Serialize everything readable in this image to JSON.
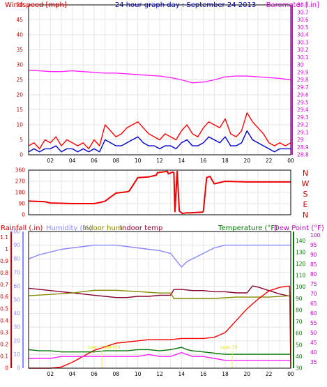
{
  "chart_data": [
    {
      "type": "line",
      "title": "24 hour graph day : September 24 2013",
      "left_axis": {
        "label": "Windspeed [mph]",
        "ticks": [
          "0",
          "5",
          "10",
          "15",
          "20",
          "25",
          "30",
          "35",
          "40",
          "45",
          "50"
        ],
        "range": [
          0,
          50
        ]
      },
      "right_axis": {
        "label": "Barometer [.in]",
        "ticks": [
          "28.8",
          "28.9",
          "29",
          "29.1",
          "29.2",
          "29.3",
          "29.4",
          "29.5",
          "29.6",
          "29.7",
          "29.8",
          "29.9",
          "30",
          "30.1",
          "30.2",
          "30.3",
          "30.4",
          "30.5",
          "30.6",
          "30.7",
          "30.8"
        ],
        "range": [
          28.8,
          30.8
        ]
      },
      "x_ticks": [
        "02",
        "04",
        "06",
        "08",
        "10",
        "12",
        "14",
        "16",
        "18",
        "20",
        "22",
        "00"
      ],
      "x_range": [
        1,
        25
      ],
      "grid": true,
      "series": [
        {
          "axis": "right",
          "color": "#ff22ff",
          "x": [
            1,
            2,
            3,
            4,
            5,
            6,
            7,
            8,
            9,
            10,
            11,
            12,
            13,
            14,
            15,
            16,
            17,
            18,
            19,
            20,
            21,
            22,
            23,
            24,
            25
          ],
          "values": [
            29.93,
            29.92,
            29.91,
            29.91,
            29.92,
            29.91,
            29.9,
            29.89,
            29.89,
            29.88,
            29.87,
            29.86,
            29.85,
            29.83,
            29.8,
            29.76,
            29.77,
            29.8,
            29.84,
            29.85,
            29.85,
            29.84,
            29.83,
            29.82,
            29.8
          ]
        },
        {
          "axis": "left",
          "color": "#ff0000",
          "x": [
            1,
            1.5,
            2,
            2.5,
            3,
            3.5,
            4,
            4.5,
            5,
            5.5,
            6,
            6.5,
            7,
            7.5,
            8,
            8.5,
            9,
            9.5,
            10,
            10.5,
            11,
            11.5,
            12,
            12.5,
            13,
            13.5,
            14,
            14.5,
            15,
            15.5,
            16,
            16.5,
            17,
            17.5,
            18,
            18.5,
            19,
            19.5,
            20,
            20.5,
            21,
            21.5,
            22,
            22.5,
            23,
            23.5,
            24,
            24.5,
            25
          ],
          "values": [
            3,
            4,
            2,
            5,
            4,
            6,
            3,
            5,
            4,
            3,
            4,
            2,
            5,
            3,
            10,
            8,
            6,
            7,
            9,
            10,
            11,
            9,
            7,
            6,
            5,
            7,
            6,
            5,
            8,
            10,
            7,
            6,
            9,
            11,
            10,
            9,
            12,
            7,
            6,
            8,
            14,
            11,
            9,
            7,
            4,
            3,
            4,
            3,
            4
          ]
        },
        {
          "axis": "left",
          "color": "#0000cc",
          "x": [
            1,
            1.5,
            2,
            2.5,
            3,
            3.5,
            4,
            4.5,
            5,
            5.5,
            6,
            6.5,
            7,
            7.5,
            8,
            8.5,
            9,
            9.5,
            10,
            10.5,
            11,
            11.5,
            12,
            12.5,
            13,
            13.5,
            14,
            14.5,
            15,
            15.5,
            16,
            16.5,
            17,
            17.5,
            18,
            18.5,
            19,
            19.5,
            20,
            20.5,
            21,
            21.5,
            22,
            22.5,
            23,
            23.5,
            24,
            24.5,
            25
          ],
          "values": [
            1,
            2,
            1,
            2,
            2,
            3,
            1,
            2,
            2,
            1,
            2,
            1,
            2,
            1,
            5,
            4,
            3,
            3,
            4,
            5,
            6,
            4,
            3,
            3,
            2,
            3,
            3,
            2,
            4,
            5,
            3,
            3,
            4,
            6,
            5,
            4,
            6,
            3,
            3,
            4,
            8,
            5,
            4,
            3,
            2,
            1,
            2,
            2,
            2
          ]
        }
      ]
    },
    {
      "type": "line",
      "left_axis": {
        "ticks": [
          "0",
          "90",
          "180",
          "270",
          "360"
        ],
        "range": [
          0,
          360
        ]
      },
      "right_axis": {
        "labels": [
          "N",
          "W",
          "S",
          "E",
          "N"
        ]
      },
      "x_range": [
        1,
        25
      ],
      "grid": true,
      "series": [
        {
          "axis": "left",
          "color": "#ee0000",
          "x": [
            1,
            2.5,
            3,
            5,
            6,
            6.5,
            7,
            7.6,
            8,
            9,
            10,
            10.2,
            10.5,
            11,
            12,
            12.7,
            12.8,
            13.7,
            13.8,
            14.2,
            14.3,
            14.4,
            14.6,
            14.8,
            15.1,
            15.4,
            15.8,
            16.7,
            16.9,
            17,
            17.3,
            17.6,
            18,
            19,
            21,
            25
          ],
          "values": [
            110,
            105,
            95,
            90,
            90,
            90,
            90,
            100,
            110,
            175,
            185,
            190,
            230,
            300,
            305,
            320,
            340,
            350,
            330,
            345,
            340,
            25,
            350,
            30,
            10,
            15,
            15,
            20,
            20,
            30,
            300,
            310,
            250,
            270,
            265,
            265
          ]
        }
      ]
    },
    {
      "type": "line",
      "axes": [
        {
          "label": "Rainfall (.in)",
          "side": "left",
          "ticks": [
            "0",
            "0.1",
            "0.2",
            "0.3",
            "0.4",
            "0.5",
            "0.6",
            "0.7",
            "0.8",
            "0.9",
            "1",
            "1.1"
          ],
          "range": [
            0,
            1.15
          ]
        },
        {
          "label": "Humidity (%)",
          "side": "left",
          "ticks": [
            "0",
            "10",
            "20",
            "30",
            "40",
            "50",
            "60",
            "70",
            "80",
            "90",
            "100"
          ],
          "range": [
            0,
            100
          ]
        },
        {
          "label": "Indoor hum",
          "side": "top"
        },
        {
          "label": "Indoor temp",
          "side": "top"
        },
        {
          "label": "Temperature (°F)",
          "side": "right",
          "ticks": [
            "30",
            "40",
            "50",
            "60",
            "70",
            "80",
            "90",
            "100",
            "110",
            "120",
            "130",
            "140"
          ],
          "range": [
            30,
            148
          ]
        },
        {
          "label": "Dew Point (°F)",
          "side": "right",
          "ticks": [
            "35",
            "40",
            "45",
            "50",
            "55",
            "60",
            "65",
            "70",
            "75",
            "80",
            "85",
            "90",
            "95",
            "100"
          ],
          "range": [
            32,
            102
          ]
        }
      ],
      "x_ticks": [
        "02",
        "04",
        "06",
        "08",
        "10",
        "12",
        "14",
        "16",
        "18",
        "20",
        "22",
        "00"
      ],
      "x_range": [
        1,
        25
      ],
      "grid": true,
      "annotations": [
        "Low: 4 (00:00)",
        "Low: 35"
      ],
      "series": [
        {
          "axis": "Humidity (%)",
          "color": "#8888ff",
          "x": [
            1,
            2,
            3,
            4,
            5,
            6,
            7,
            8,
            9,
            10,
            11,
            12,
            13,
            14,
            14.5,
            15,
            15.5,
            16,
            17,
            18,
            19,
            20,
            21,
            22,
            23,
            24,
            25
          ],
          "values": [
            80,
            83,
            85,
            87,
            88,
            89,
            90,
            90,
            90,
            89,
            88,
            87,
            86,
            84,
            79,
            74,
            78,
            80,
            84,
            88,
            90,
            90,
            90,
            90,
            90,
            90,
            90
          ]
        },
        {
          "axis": "Temperature (°F)",
          "color": "#880033",
          "x": [
            1,
            2,
            3,
            4,
            5,
            6,
            7,
            8,
            9,
            10,
            11,
            12,
            13,
            14,
            14.3,
            15,
            16,
            17,
            18,
            19,
            20,
            21,
            21.5,
            22,
            23,
            24,
            25
          ],
          "values": [
            99,
            98,
            97,
            96,
            95,
            94,
            93,
            92,
            91,
            91,
            92,
            92,
            93,
            93,
            98,
            98,
            97,
            97,
            96,
            96,
            95,
            95,
            101,
            100,
            97,
            94,
            92
          ]
        },
        {
          "axis": "Humidity (%)",
          "color": "#888800",
          "x": [
            1,
            3,
            5,
            7,
            8,
            9,
            11,
            13,
            14,
            14.3,
            16,
            18,
            20,
            22,
            23,
            25
          ],
          "values": [
            53,
            54,
            55,
            57,
            57,
            57,
            56,
            55,
            55,
            51,
            51,
            51,
            52,
            52,
            52,
            53
          ]
        },
        {
          "axis": "Rainfall (.in)",
          "color": "#ff0000",
          "x": [
            1,
            3,
            4,
            5,
            6,
            7,
            8,
            9,
            10,
            11,
            12,
            13,
            14,
            15,
            16,
            17,
            18,
            19,
            20,
            21,
            22,
            23,
            24,
            24.7,
            24.9,
            25
          ],
          "values": [
            0,
            0,
            0.01,
            0.05,
            0.1,
            0.15,
            0.18,
            0.21,
            0.22,
            0.23,
            0.24,
            0.24,
            0.24,
            0.25,
            0.25,
            0.25,
            0.26,
            0.3,
            0.4,
            0.5,
            0.58,
            0.65,
            0.68,
            0.69,
            0.69,
            0
          ]
        },
        {
          "axis": "Temperature (°F)",
          "color": "#007700",
          "x": [
            1,
            2,
            3,
            4,
            5,
            6,
            7,
            8,
            9,
            10,
            11,
            12,
            13,
            14,
            14.5,
            15,
            15.5,
            16,
            17,
            18,
            19,
            20,
            22,
            25
          ],
          "values": [
            46,
            45,
            45,
            44,
            44,
            44,
            44,
            45,
            45,
            45,
            46,
            46,
            45,
            46,
            47,
            48,
            46,
            45,
            44,
            43,
            42,
            42,
            42,
            42
          ]
        },
        {
          "axis": "Dew Point (°F)",
          "color": "#ff22ff",
          "x": [
            1,
            2,
            3,
            4,
            5,
            6,
            7,
            8,
            9,
            10,
            11,
            12,
            13,
            14,
            14.5,
            15,
            15.5,
            16,
            17,
            18,
            19,
            20,
            22,
            25
          ],
          "values": [
            37,
            37,
            37,
            38,
            38,
            38,
            38,
            38,
            38,
            38,
            38,
            39,
            38,
            38,
            39,
            40,
            39,
            38,
            38,
            37,
            36,
            36,
            36,
            36
          ]
        }
      ]
    }
  ]
}
